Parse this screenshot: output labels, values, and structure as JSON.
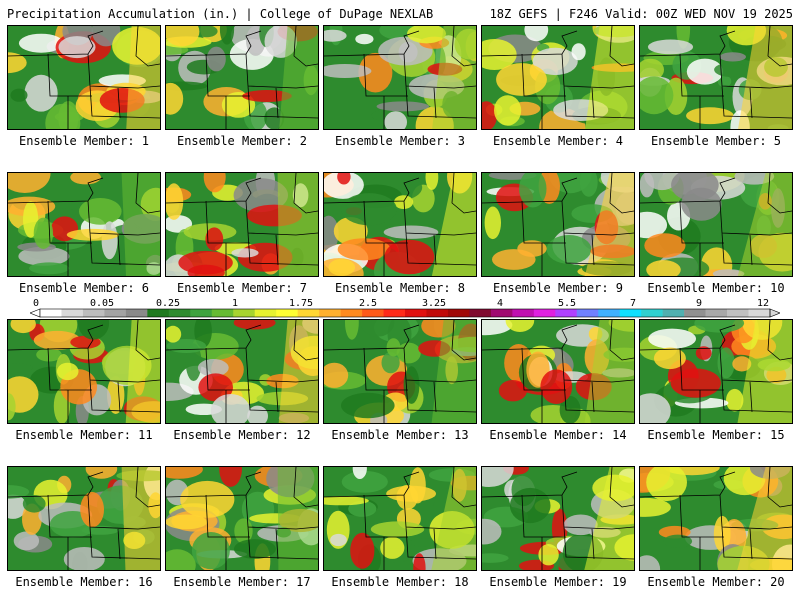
{
  "header": {
    "left": "Precipitation Accumulation (in.) | College of DuPage NEXLAB",
    "right": "18Z GEFS | F246 Valid: 00Z WED NOV 19 2025"
  },
  "members": [
    "Ensemble Member: 1",
    "Ensemble Member: 2",
    "Ensemble Member: 3",
    "Ensemble Member: 4",
    "Ensemble Member: 5",
    "Ensemble Member: 6",
    "Ensemble Member: 7",
    "Ensemble Member: 8",
    "Ensemble Member: 9",
    "Ensemble Member: 10",
    "Ensemble Member: 11",
    "Ensemble Member: 12",
    "Ensemble Member: 13",
    "Ensemble Member: 14",
    "Ensemble Member: 15",
    "Ensemble Member: 16",
    "Ensemble Member: 17",
    "Ensemble Member: 18",
    "Ensemble Member: 19",
    "Ensemble Member: 20"
  ],
  "colorbar": {
    "tick_labels": [
      "0",
      "0.05",
      "0.25",
      "1",
      "1.75",
      "2.5",
      "3.25",
      "4",
      "5.5",
      "7",
      "9",
      "12"
    ],
    "colors": [
      "#ffffff",
      "#d9d9d9",
      "#bdbdbd",
      "#a3a3a3",
      "#8a8a8a",
      "#1f7a1f",
      "#2e8b2e",
      "#3fa33f",
      "#66bb33",
      "#a6d430",
      "#e6f230",
      "#ffff33",
      "#ffd633",
      "#ffb030",
      "#ff8a1f",
      "#ff5a1a",
      "#ff2a1a",
      "#e01010",
      "#c00a0a",
      "#a00808",
      "#800a30",
      "#a00a70",
      "#c010b0",
      "#e020e0",
      "#b040ff",
      "#7080ff",
      "#40b0ff",
      "#10e0ff",
      "#30d0d0",
      "#50b0b0",
      "#909090",
      "#a8a8a8",
      "#c0c0c0",
      "#d8d8d8"
    ]
  }
}
